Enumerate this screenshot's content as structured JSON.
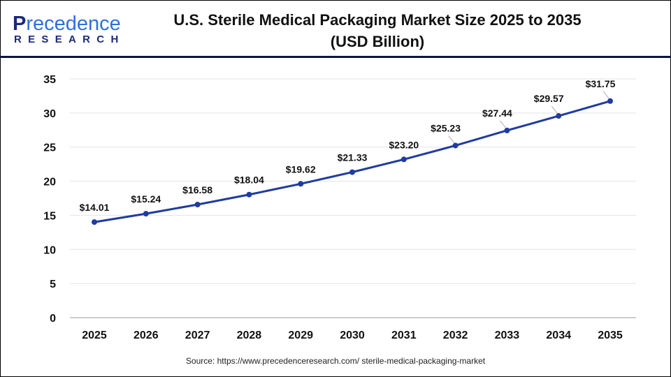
{
  "logo": {
    "line1_dark": "P",
    "line1_rest": "recedence",
    "line2": "RESEARCH"
  },
  "header": {
    "title_line1": "U.S. Sterile Medical Packaging Market Size 2025 to 2035",
    "title_line2": "(USD Billion)"
  },
  "source": "Source: https://www.precedenceresearch.com/ sterile-medical-packaging-market",
  "chart_data": {
    "type": "line",
    "title": "U.S. Sterile Medical Packaging Market Size 2025 to 2035 (USD Billion)",
    "categories": [
      "2025",
      "2026",
      "2027",
      "2028",
      "2029",
      "2030",
      "2031",
      "2032",
      "2033",
      "2034",
      "2035"
    ],
    "values": [
      14.01,
      15.24,
      16.58,
      18.04,
      19.62,
      21.33,
      23.2,
      25.23,
      27.44,
      29.57,
      31.75
    ],
    "data_labels": [
      "$14.01",
      "$15.24",
      "$16.58",
      "$18.04",
      "$19.62",
      "$21.33",
      "$23.20",
      "$25.23",
      "$27.44",
      "$29.57",
      "$31.75"
    ],
    "ylim": [
      0,
      35
    ],
    "yticks": [
      0,
      5,
      10,
      15,
      20,
      25,
      30,
      35
    ],
    "grid": true,
    "line_color": "#1f3c9e"
  }
}
